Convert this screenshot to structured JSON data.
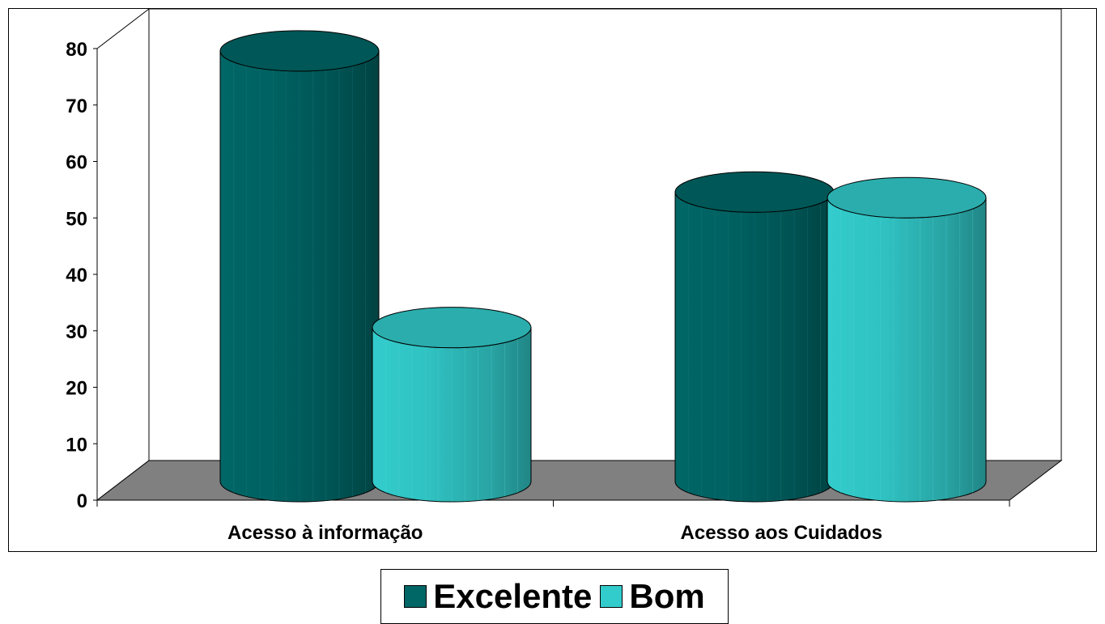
{
  "chart_data": {
    "type": "bar",
    "style": "3d-cylinder",
    "title": "",
    "xlabel": "",
    "ylabel": "",
    "categories": [
      "Acesso à informação",
      "Acesso aos Cuidados"
    ],
    "series": [
      {
        "name": "Excelente",
        "color": "#006666",
        "values": [
          76,
          51
        ]
      },
      {
        "name": "Bom",
        "color": "#33cccc",
        "values": [
          27,
          50
        ]
      }
    ],
    "ylim": [
      0,
      80
    ],
    "yticks": [
      "0",
      "10",
      "20",
      "30",
      "40",
      "50",
      "60",
      "70",
      "80"
    ],
    "grid": false,
    "legend_position": "bottom"
  }
}
